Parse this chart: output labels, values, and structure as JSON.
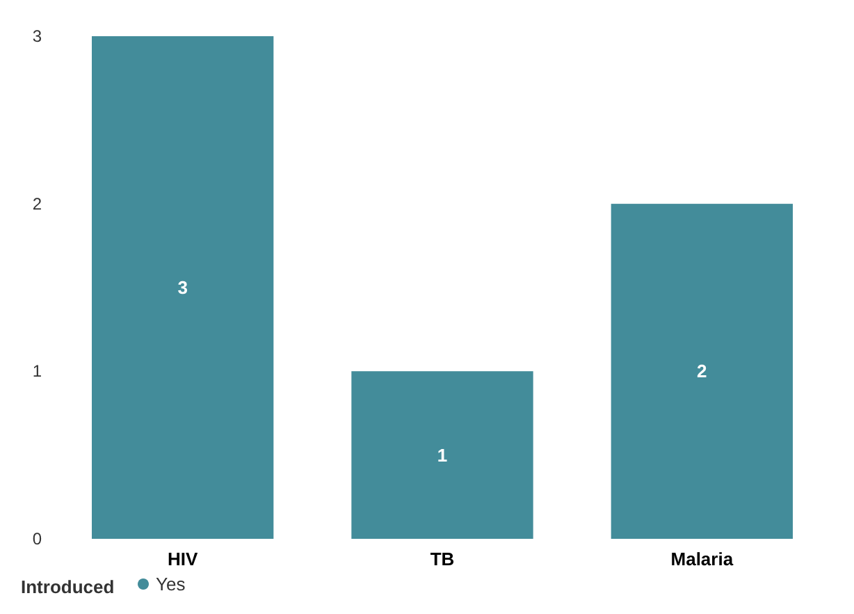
{
  "chart_data": {
    "type": "bar",
    "categories": [
      "HIV",
      "TB",
      "Malaria"
    ],
    "series": [
      {
        "name": "Yes",
        "color": "#438c9a",
        "values": [
          3,
          1,
          2
        ]
      }
    ],
    "ylim": [
      0,
      3
    ],
    "yticks": [
      0,
      1,
      2,
      3
    ],
    "grid": false,
    "data_labels": true,
    "legend": "bottom left",
    "legend_title": "Introduced"
  }
}
